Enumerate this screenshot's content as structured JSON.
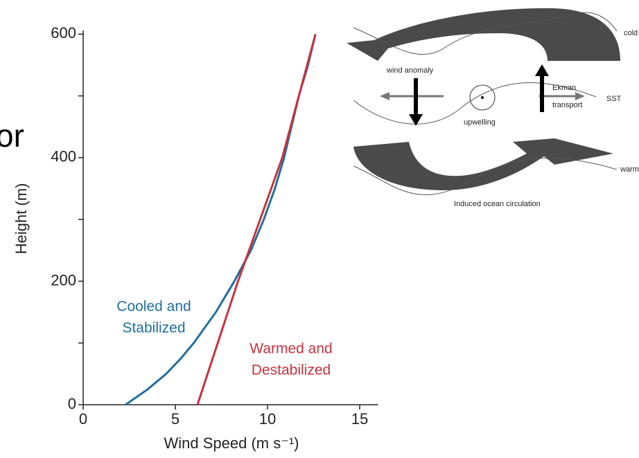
{
  "chart_data": {
    "type": "line",
    "x_label": "Wind Speed (m s⁻¹)",
    "y_label": "Height (m)",
    "xlim": [
      0,
      16
    ],
    "xticks": [
      0,
      5,
      10,
      15
    ],
    "ylim": [
      0,
      606
    ],
    "yticks": [
      0,
      200,
      400,
      600
    ],
    "yticks_minor": [
      100,
      300,
      500
    ],
    "series": [
      {
        "label_lines": [
          "Cooled and",
          "Stabilized"
        ],
        "color": "#1f6fa0",
        "x": [
          2.3,
          3.5,
          4.5,
          5.3,
          6.0,
          7.2,
          8.2,
          9.1,
          9.8,
          10.4,
          10.9,
          11.3,
          11.7,
          12.2,
          12.6
        ],
        "values": [
          0,
          25,
          50,
          75,
          100,
          150,
          200,
          250,
          300,
          350,
          400,
          450,
          500,
          550,
          600
        ]
      },
      {
        "label_lines": [
          "Warmed and",
          "Destabilized"
        ],
        "color": "#c8323c",
        "x": [
          6.2,
          7.3,
          8.4,
          9.6,
          10.8,
          11.7,
          12.6
        ],
        "values": [
          0,
          100,
          200,
          300,
          400,
          500,
          600
        ]
      }
    ]
  },
  "fragment_text": "or",
  "diagram": {
    "cold": "cold",
    "wind_anomaly": "wind anomaly",
    "ekman_lines": [
      "Ekman",
      "transport"
    ],
    "sst": "SST",
    "upwelling": "upwelling",
    "warm": "warm",
    "caption": "Induced ocean circulation"
  }
}
